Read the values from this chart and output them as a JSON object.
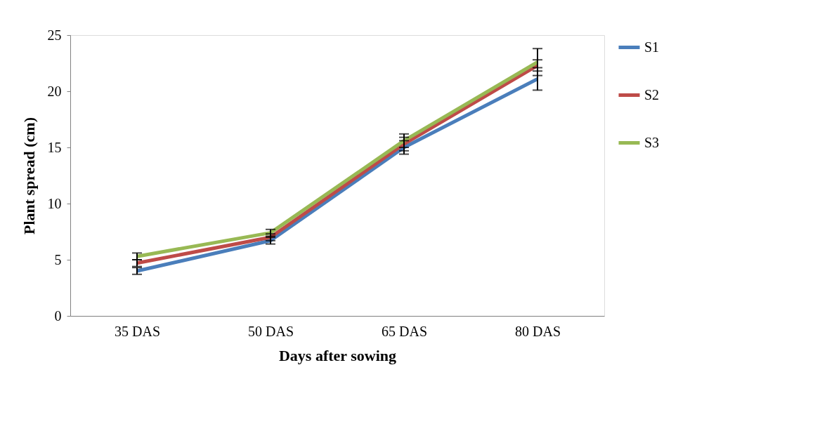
{
  "chart_data": {
    "type": "line",
    "xlabel": "Days after sowing",
    "ylabel": "Plant spread (cm)",
    "categories": [
      "35 DAS",
      "50 DAS",
      "65 DAS",
      "80 DAS"
    ],
    "series": [
      {
        "name": "S1",
        "color": "#4a7ebb",
        "values": [
          4.0,
          6.7,
          15.0,
          21.1
        ],
        "errors": [
          0.3,
          0.3,
          0.6,
          1.0
        ]
      },
      {
        "name": "S2",
        "color": "#be4b48",
        "values": [
          4.7,
          7.0,
          15.3,
          22.3
        ],
        "errors": [
          0.3,
          0.3,
          0.6,
          0.5
        ]
      },
      {
        "name": "S3",
        "color": "#98b954",
        "values": [
          5.3,
          7.4,
          15.6,
          22.6
        ],
        "errors": [
          0.3,
          0.3,
          0.6,
          1.2
        ]
      }
    ],
    "ylim": [
      0,
      25
    ],
    "yticks": [
      0,
      5,
      10,
      15,
      20,
      25
    ],
    "grid": false,
    "legend": "right",
    "marker": "none",
    "line_style": "solid"
  }
}
